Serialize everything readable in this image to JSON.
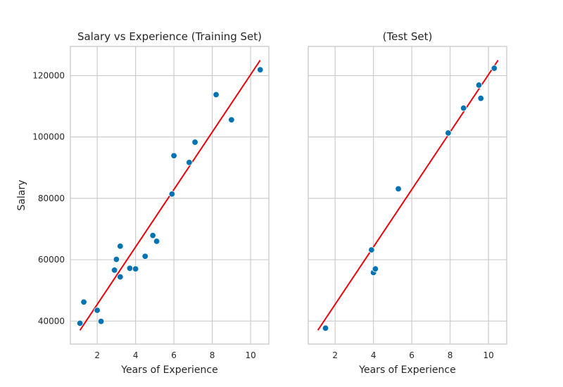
{
  "chart_data": [
    {
      "type": "scatter",
      "title": "Salary vs Experience (Training Set)",
      "xlabel": "Years of Experience",
      "ylabel": "Salary",
      "xlim": [
        0.6,
        10.95
      ],
      "ylim": [
        32500,
        129500
      ],
      "xticks": [
        2,
        4,
        6,
        8,
        10
      ],
      "yticks": [
        40000,
        60000,
        80000,
        100000,
        120000
      ],
      "grid": true,
      "series": [
        {
          "kind": "points",
          "color": "#0173b2",
          "x": [
            1.1,
            1.3,
            2.0,
            2.2,
            2.9,
            3.0,
            3.2,
            3.2,
            3.7,
            4.0,
            4.5,
            4.9,
            5.1,
            5.9,
            6.0,
            6.8,
            7.1,
            8.2,
            9.0,
            10.5
          ],
          "y": [
            39300,
            46200,
            43500,
            39900,
            56600,
            60100,
            54400,
            64400,
            57200,
            57000,
            61100,
            67900,
            66000,
            81400,
            93900,
            91700,
            98300,
            113800,
            105600,
            121900
          ]
        },
        {
          "kind": "regression-line",
          "color": "#e8000b",
          "x": [
            1.1,
            10.5
          ],
          "y": [
            37000,
            125000
          ]
        }
      ]
    },
    {
      "type": "scatter",
      "title": "(Test Set)",
      "xlabel": "Years of Experience",
      "ylabel": "",
      "xlim": [
        0.6,
        10.95
      ],
      "ylim": [
        32500,
        129500
      ],
      "xticks": [
        2,
        4,
        6,
        8,
        10
      ],
      "yticks": [
        40000,
        60000,
        80000,
        100000,
        120000
      ],
      "show_ytick_labels": false,
      "grid": true,
      "series": [
        {
          "kind": "points",
          "color": "#0173b2",
          "x": [
            1.5,
            3.9,
            4.0,
            4.1,
            5.3,
            7.9,
            8.7,
            9.5,
            9.6,
            10.3
          ],
          "y": [
            37700,
            63200,
            55800,
            57000,
            83100,
            101300,
            109400,
            116900,
            112600,
            122400
          ]
        },
        {
          "kind": "regression-line",
          "color": "#e8000b",
          "x": [
            1.1,
            10.5
          ],
          "y": [
            37000,
            125000
          ]
        }
      ]
    }
  ]
}
